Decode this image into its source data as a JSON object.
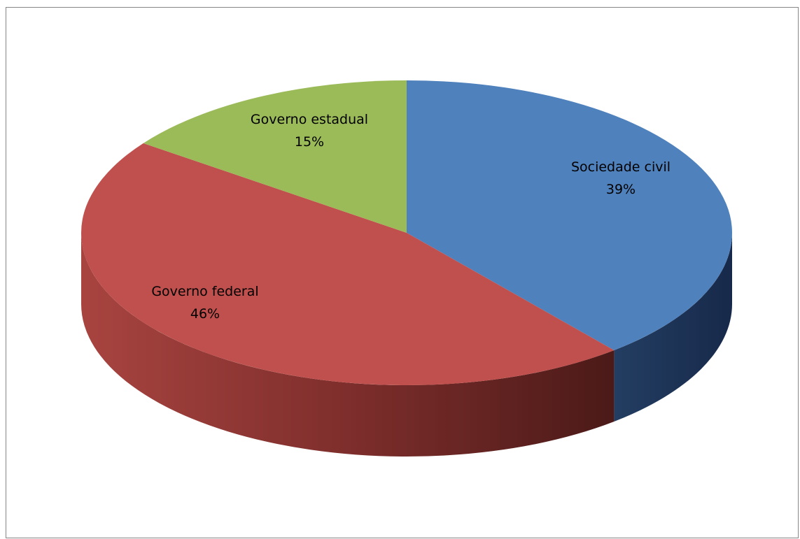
{
  "chart_data": {
    "type": "pie",
    "three_d": true,
    "title": "",
    "categories": [
      "Sociedade civil",
      "Governo federal",
      "Governo estadual"
    ],
    "values": [
      39,
      46,
      15
    ],
    "value_format": "percent",
    "labels": [
      "Sociedade civil\n39%",
      "Governo federal\n46%",
      "Governo estadual\n15%"
    ],
    "colors": [
      "#4f81bd",
      "#c0504d",
      "#9bbb59"
    ],
    "side_colors": [
      "#1f3655",
      "#7a2c2a",
      "#5f7a32"
    ],
    "start_angle_deg": 0,
    "direction": "clockwise",
    "legend": "none"
  }
}
